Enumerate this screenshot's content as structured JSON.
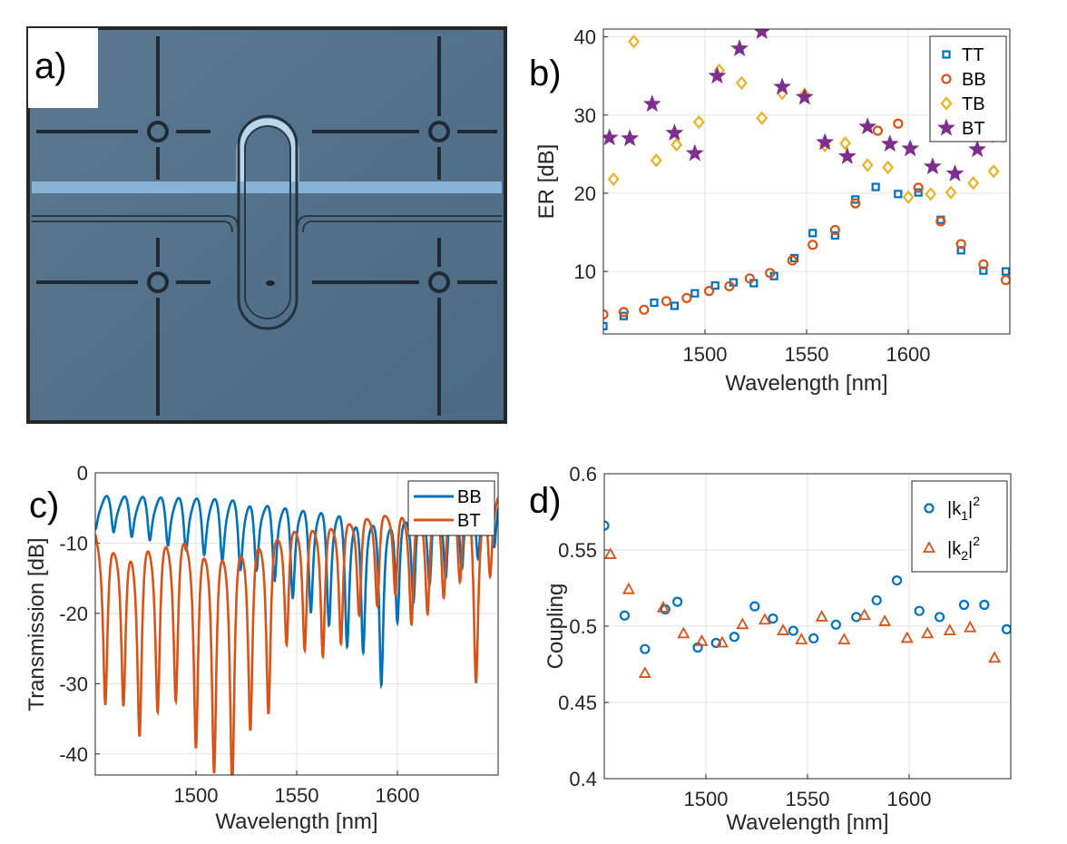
{
  "panel_labels": {
    "a": "a)",
    "b": "b)",
    "c": "c)",
    "d": "d)"
  },
  "colors": {
    "TT": "#0072BD",
    "BB": "#D95319",
    "TB": "#EDB120",
    "BT": "#7E2F8E",
    "k1": "#0072BD",
    "k2": "#D95319"
  },
  "chart_data": [
    {
      "id": "b",
      "type": "scatter",
      "xlabel": "Wavelength [nm]",
      "ylabel": "ER [dB]",
      "xlim": [
        1450,
        1650
      ],
      "ylim": [
        2,
        41
      ],
      "xticks": [
        1500,
        1550,
        1600
      ],
      "yticks": [
        10,
        20,
        30,
        40
      ],
      "grid": true,
      "legend_position": "top-right",
      "series": [
        {
          "name": "TT",
          "marker": "square",
          "x": [
            1450,
            1460,
            1475,
            1485,
            1495,
            1505,
            1514,
            1524,
            1534,
            1544,
            1553,
            1564,
            1574,
            1584,
            1595,
            1605,
            1616,
            1626,
            1637,
            1648
          ],
          "y": [
            3.0,
            4.3,
            6.0,
            5.6,
            7.2,
            8.2,
            8.6,
            8.5,
            9.4,
            11.7,
            14.9,
            14.6,
            19.2,
            20.8,
            19.9,
            20.1,
            16.6,
            12.7,
            10.1,
            10.0
          ]
        },
        {
          "name": "BB",
          "marker": "circle",
          "x": [
            1450,
            1460,
            1470,
            1481,
            1491,
            1502,
            1512,
            1522,
            1532,
            1543,
            1553,
            1564,
            1574,
            1585,
            1595,
            1605,
            1616,
            1626,
            1637,
            1648
          ],
          "y": [
            4.5,
            4.8,
            5.1,
            6.2,
            6.6,
            7.5,
            8.1,
            9.1,
            9.8,
            11.4,
            13.4,
            15.3,
            18.7,
            28.0,
            28.9,
            20.7,
            16.4,
            13.5,
            10.9,
            8.9
          ]
        },
        {
          "name": "TB",
          "marker": "diamond",
          "x": [
            1455,
            1465,
            1476,
            1486,
            1497,
            1507,
            1518,
            1528,
            1538,
            1549,
            1559,
            1569,
            1580,
            1590,
            1600,
            1611,
            1621,
            1632,
            1642
          ],
          "y": [
            21.8,
            39.4,
            24.2,
            26.2,
            29.1,
            35.7,
            34.1,
            29.6,
            32.8,
            32.6,
            26.1,
            26.4,
            23.6,
            23.3,
            19.5,
            19.9,
            20.1,
            21.3,
            22.8
          ]
        },
        {
          "name": "BT",
          "marker": "star",
          "x": [
            1453,
            1463,
            1474,
            1485,
            1495,
            1506,
            1517,
            1528,
            1538,
            1549,
            1559,
            1570,
            1580,
            1591,
            1601,
            1612,
            1623,
            1634,
            1644
          ],
          "y": [
            27.1,
            27.0,
            31.4,
            27.7,
            25.1,
            35.0,
            38.5,
            40.7,
            33.6,
            32.3,
            26.5,
            24.7,
            28.5,
            26.3,
            25.7,
            23.4,
            22.5,
            25.6,
            27.4
          ]
        }
      ]
    },
    {
      "id": "c",
      "type": "line",
      "xlabel": "Wavelength [nm]",
      "ylabel": "Transmission [dB]",
      "xlim": [
        1450,
        1650
      ],
      "ylim": [
        -43,
        0
      ],
      "xticks": [
        1500,
        1550,
        1600
      ],
      "yticks": [
        0,
        -10,
        -20,
        -30,
        -40
      ],
      "grid": true,
      "legend_position": "top-right",
      "series": [
        {
          "name": "BB",
          "baseline_start": -3.0,
          "baseline_end": -1.0,
          "dips_x": [
            1450,
            1459,
            1468,
            1477,
            1486,
            1495,
            1504,
            1513,
            1522,
            1530,
            1539,
            1548,
            1557,
            1566,
            1575,
            1583,
            1592,
            1600,
            1608,
            1616,
            1624,
            1632,
            1640,
            1648
          ],
          "dips_y": [
            -7.5,
            -7.8,
            -8.4,
            -8.8,
            -9.5,
            -10.1,
            -10.7,
            -11.4,
            -12.6,
            -13.2,
            -14.6,
            -16.9,
            -18.8,
            -20.5,
            -23.3,
            -24.5,
            -29.3,
            -20.4,
            -17.6,
            -14.8,
            -13.4,
            -11.9,
            -10.5,
            -9.5
          ]
        },
        {
          "name": "BT",
          "baseline_start": -6.0,
          "baseline_end": -0.5,
          "dips_x": [
            1455,
            1464,
            1472,
            1481,
            1490,
            1500,
            1509,
            1518,
            1527,
            1536,
            1545,
            1554,
            1563,
            1572,
            1581,
            1590,
            1599,
            1607,
            1615,
            1623,
            1631,
            1639,
            1646
          ],
          "dips_y": [
            -32.5,
            -31.8,
            -35.5,
            -32.0,
            -30.5,
            -37.7,
            -41.0,
            -43.0,
            -35.0,
            -33.0,
            -23.2,
            -24.2,
            -25.2,
            -23.5,
            -19.5,
            -18.3,
            -16.5,
            -20.3,
            -18.2,
            -15.5,
            -13.0,
            -28.2,
            -14.0
          ]
        }
      ]
    },
    {
      "id": "d",
      "type": "scatter",
      "xlabel": "Wavelength [nm]",
      "ylabel": "Coupling",
      "xlim": [
        1450,
        1650
      ],
      "ylim": [
        0.4,
        0.6
      ],
      "xticks": [
        1500,
        1550,
        1600
      ],
      "yticks": [
        0.4,
        0.45,
        0.5,
        0.55,
        0.6
      ],
      "ytick_labels": [
        "0.4",
        "0.45",
        "0.5",
        "0.55",
        "0.6"
      ],
      "grid": true,
      "legend_position": "top-right",
      "series": [
        {
          "name": "|k1|^2",
          "legend_base": "|k",
          "legend_sub": "1",
          "legend_tail": "|",
          "legend_sup": "2",
          "marker": "circle",
          "x": [
            1450,
            1460,
            1470,
            1480,
            1486,
            1496,
            1505,
            1514,
            1524,
            1533,
            1543,
            1553,
            1564,
            1574,
            1584,
            1594,
            1605,
            1615,
            1627,
            1637,
            1648
          ],
          "y": [
            0.566,
            0.507,
            0.485,
            0.511,
            0.516,
            0.486,
            0.489,
            0.493,
            0.513,
            0.505,
            0.497,
            0.492,
            0.501,
            0.506,
            0.517,
            0.53,
            0.51,
            0.506,
            0.514,
            0.514,
            0.498
          ]
        },
        {
          "name": "|k2|^2",
          "legend_base": "|k",
          "legend_sub": "2",
          "legend_tail": "|",
          "legend_sup": "2",
          "marker": "triangle",
          "x": [
            1453,
            1462,
            1470,
            1479,
            1489,
            1498,
            1508,
            1518,
            1529,
            1538,
            1547,
            1557,
            1568,
            1578,
            1588,
            1599,
            1609,
            1620,
            1630,
            1642
          ],
          "y": [
            0.547,
            0.524,
            0.469,
            0.512,
            0.495,
            0.49,
            0.489,
            0.501,
            0.504,
            0.497,
            0.491,
            0.506,
            0.491,
            0.507,
            0.503,
            0.492,
            0.495,
            0.497,
            0.499,
            0.479
          ]
        }
      ]
    }
  ]
}
